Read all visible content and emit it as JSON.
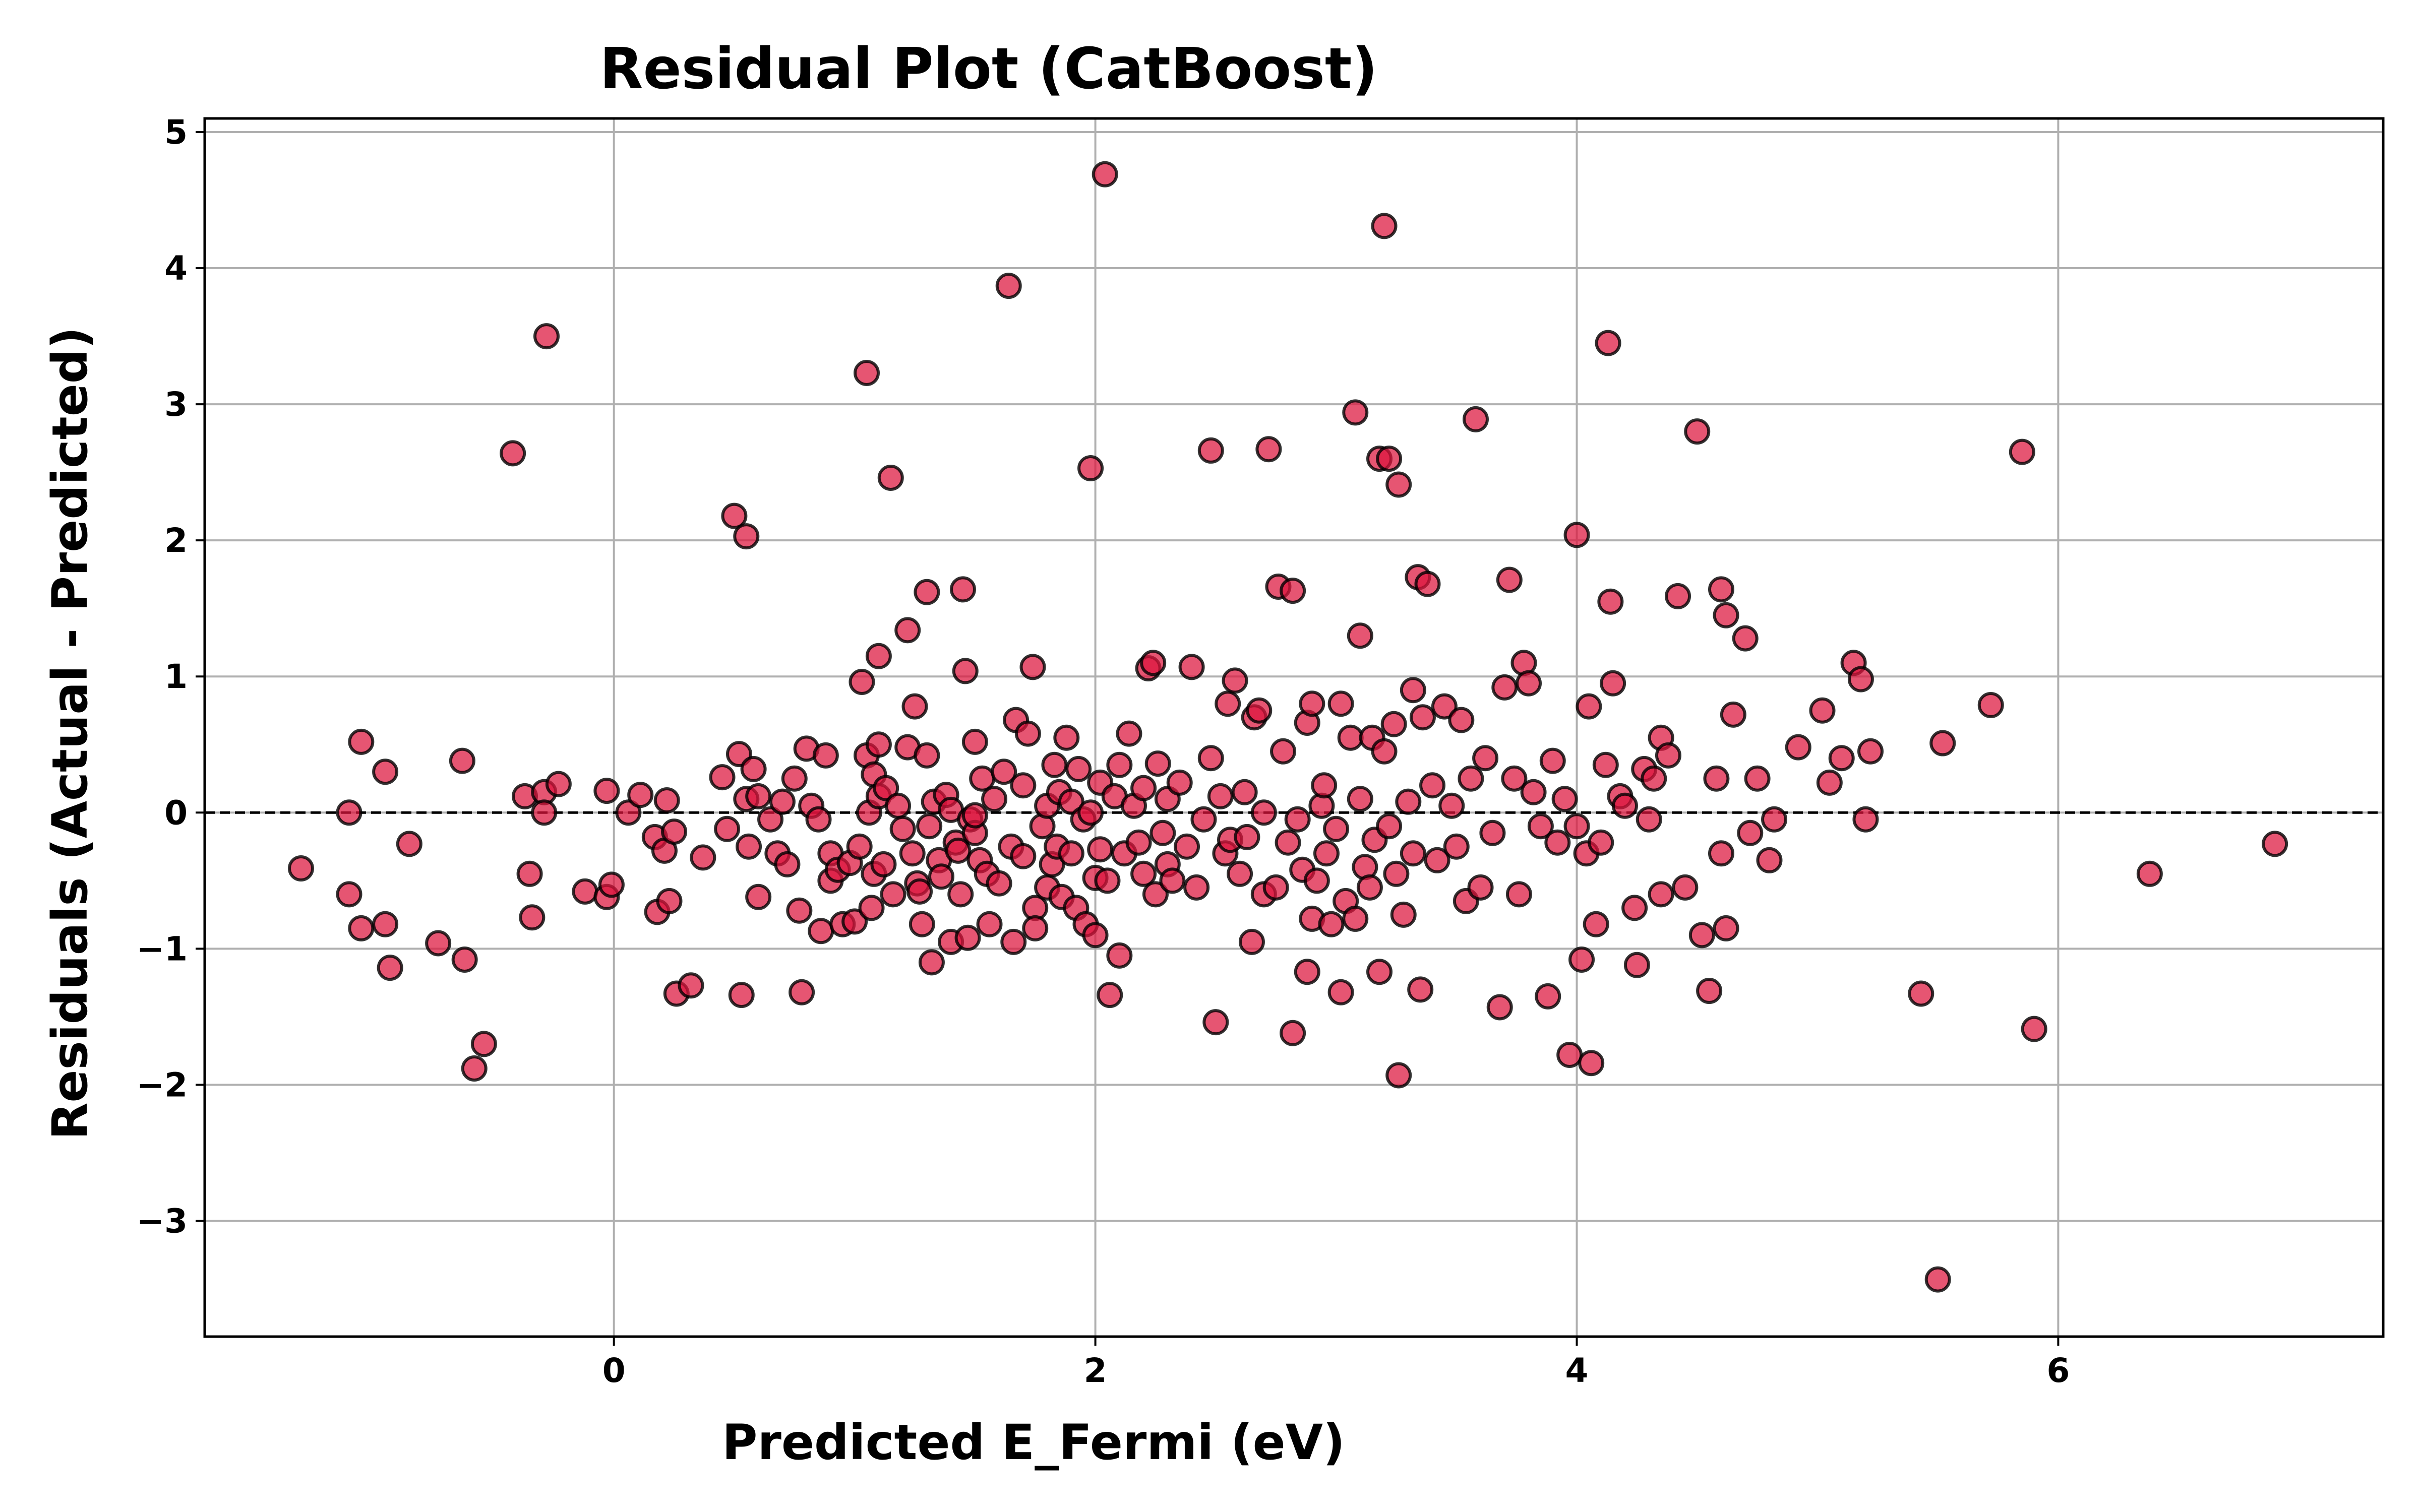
{
  "chart_data": {
    "type": "scatter",
    "title": "Residual Plot (CatBoost)",
    "xlabel": "Predicted E_Fermi (eV)",
    "ylabel": "Residuals (Actual - Predicted)",
    "xlim": [
      -1.7,
      7.35
    ],
    "ylim": [
      -3.85,
      5.1
    ],
    "xticks": [
      0,
      2,
      4,
      6
    ],
    "xtick_labels": [
      "0",
      "2",
      "4",
      "6"
    ],
    "yticks": [
      5,
      4,
      3,
      2,
      1,
      0,
      -1,
      -2,
      -3
    ],
    "ytick_labels": [
      "5",
      "4",
      "3",
      "2",
      "1",
      "0",
      "−1",
      "−2",
      "−3"
    ],
    "grid": true,
    "reference_line": {
      "y": 0,
      "style": "dashed",
      "color": "#000000"
    },
    "marker_fill": "#dc143c",
    "marker_edge": "#000000",
    "points": [
      [
        -1.3,
        -0.41
      ],
      [
        -1.1,
        0.0
      ],
      [
        -1.1,
        -0.6
      ],
      [
        -1.05,
        0.52
      ],
      [
        -1.05,
        -0.85
      ],
      [
        -0.95,
        0.3
      ],
      [
        -0.95,
        -0.82
      ],
      [
        -0.93,
        -1.14
      ],
      [
        -0.85,
        -0.23
      ],
      [
        -0.73,
        -0.96
      ],
      [
        -0.63,
        0.38
      ],
      [
        -0.62,
        -1.08
      ],
      [
        -0.58,
        -1.88
      ],
      [
        -0.54,
        -1.7
      ],
      [
        -0.42,
        2.64
      ],
      [
        -0.37,
        0.12
      ],
      [
        -0.35,
        -0.45
      ],
      [
        -0.34,
        -0.77
      ],
      [
        -0.29,
        0.15
      ],
      [
        -0.29,
        0.0
      ],
      [
        -0.28,
        3.5
      ],
      [
        -0.23,
        0.21
      ],
      [
        -0.12,
        -0.58
      ],
      [
        -0.03,
        0.16
      ],
      [
        -0.03,
        -0.62
      ],
      [
        -0.01,
        -0.53
      ],
      [
        0.06,
        0.0
      ],
      [
        0.11,
        0.13
      ],
      [
        0.17,
        -0.18
      ],
      [
        0.18,
        -0.73
      ],
      [
        0.21,
        -0.28
      ],
      [
        0.22,
        0.09
      ],
      [
        0.23,
        -0.65
      ],
      [
        0.25,
        -0.14
      ],
      [
        0.26,
        -1.33
      ],
      [
        0.32,
        -1.27
      ],
      [
        0.37,
        -0.33
      ],
      [
        0.45,
        0.26
      ],
      [
        0.47,
        -0.12
      ],
      [
        0.5,
        2.18
      ],
      [
        0.52,
        0.43
      ],
      [
        0.53,
        -1.34
      ],
      [
        0.55,
        2.03
      ],
      [
        0.55,
        0.1
      ],
      [
        0.56,
        -0.25
      ],
      [
        0.58,
        0.32
      ],
      [
        0.6,
        -0.62
      ],
      [
        0.6,
        0.12
      ],
      [
        0.65,
        -0.05
      ],
      [
        0.68,
        -0.3
      ],
      [
        0.7,
        0.08
      ],
      [
        0.72,
        -0.38
      ],
      [
        0.75,
        0.25
      ],
      [
        0.77,
        -0.72
      ],
      [
        0.78,
        -1.32
      ],
      [
        0.8,
        0.47
      ],
      [
        0.82,
        0.05
      ],
      [
        0.85,
        -0.05
      ],
      [
        0.86,
        -0.87
      ],
      [
        0.88,
        0.42
      ],
      [
        0.9,
        -0.3
      ],
      [
        0.9,
        -0.5
      ],
      [
        0.93,
        -0.42
      ],
      [
        0.95,
        -0.82
      ],
      [
        0.98,
        -0.37
      ],
      [
        1.0,
        -0.8
      ],
      [
        1.02,
        -0.25
      ],
      [
        1.03,
        0.96
      ],
      [
        1.05,
        3.23
      ],
      [
        1.05,
        0.42
      ],
      [
        1.06,
        0.0
      ],
      [
        1.07,
        -0.7
      ],
      [
        1.08,
        0.28
      ],
      [
        1.08,
        -0.45
      ],
      [
        1.1,
        1.15
      ],
      [
        1.1,
        0.5
      ],
      [
        1.1,
        0.12
      ],
      [
        1.12,
        -0.38
      ],
      [
        1.13,
        0.18
      ],
      [
        1.15,
        2.46
      ],
      [
        1.16,
        -0.6
      ],
      [
        1.18,
        0.05
      ],
      [
        1.2,
        -0.12
      ],
      [
        1.22,
        0.48
      ],
      [
        1.22,
        1.34
      ],
      [
        1.24,
        -0.3
      ],
      [
        1.25,
        0.78
      ],
      [
        1.26,
        -0.52
      ],
      [
        1.27,
        -0.58
      ],
      [
        1.28,
        -0.82
      ],
      [
        1.3,
        1.62
      ],
      [
        1.3,
        0.42
      ],
      [
        1.31,
        -0.1
      ],
      [
        1.32,
        -1.1
      ],
      [
        1.33,
        0.08
      ],
      [
        1.35,
        -0.35
      ],
      [
        1.36,
        -0.47
      ],
      [
        1.38,
        0.13
      ],
      [
        1.4,
        -0.95
      ],
      [
        1.4,
        0.02
      ],
      [
        1.42,
        -0.22
      ],
      [
        1.43,
        -0.28
      ],
      [
        1.44,
        -0.6
      ],
      [
        1.45,
        1.64
      ],
      [
        1.46,
        1.04
      ],
      [
        1.47,
        -0.92
      ],
      [
        1.48,
        -0.05
      ],
      [
        1.5,
        0.52
      ],
      [
        1.5,
        -0.15
      ],
      [
        1.5,
        -0.02
      ],
      [
        1.52,
        -0.35
      ],
      [
        1.53,
        0.25
      ],
      [
        1.55,
        -0.45
      ],
      [
        1.56,
        -0.82
      ],
      [
        1.58,
        0.1
      ],
      [
        1.6,
        -0.52
      ],
      [
        1.62,
        0.3
      ],
      [
        1.64,
        3.87
      ],
      [
        1.65,
        -0.25
      ],
      [
        1.66,
        -0.95
      ],
      [
        1.67,
        0.68
      ],
      [
        1.7,
        0.2
      ],
      [
        1.7,
        -0.32
      ],
      [
        1.72,
        0.58
      ],
      [
        1.74,
        1.07
      ],
      [
        1.75,
        -0.7
      ],
      [
        1.75,
        -0.85
      ],
      [
        1.78,
        -0.1
      ],
      [
        1.8,
        -0.55
      ],
      [
        1.8,
        0.05
      ],
      [
        1.82,
        -0.38
      ],
      [
        1.83,
        0.35
      ],
      [
        1.84,
        -0.25
      ],
      [
        1.85,
        0.15
      ],
      [
        1.86,
        -0.62
      ],
      [
        1.88,
        0.55
      ],
      [
        1.9,
        -0.3
      ],
      [
        1.9,
        0.08
      ],
      [
        1.92,
        -0.7
      ],
      [
        1.93,
        0.32
      ],
      [
        1.95,
        -0.05
      ],
      [
        1.96,
        -0.82
      ],
      [
        1.98,
        2.53
      ],
      [
        1.98,
        0.0
      ],
      [
        2.0,
        -0.48
      ],
      [
        2.0,
        -0.9
      ],
      [
        2.02,
        0.22
      ],
      [
        2.02,
        -0.27
      ],
      [
        2.04,
        4.69
      ],
      [
        2.05,
        -0.5
      ],
      [
        2.06,
        -1.34
      ],
      [
        2.08,
        0.12
      ],
      [
        2.1,
        -1.05
      ],
      [
        2.1,
        0.35
      ],
      [
        2.12,
        -0.3
      ],
      [
        2.14,
        0.58
      ],
      [
        2.16,
        0.05
      ],
      [
        2.18,
        -0.22
      ],
      [
        2.2,
        0.18
      ],
      [
        2.2,
        -0.45
      ],
      [
        2.22,
        1.06
      ],
      [
        2.24,
        1.1
      ],
      [
        2.25,
        -0.6
      ],
      [
        2.26,
        0.36
      ],
      [
        2.28,
        -0.15
      ],
      [
        2.3,
        -0.38
      ],
      [
        2.3,
        0.1
      ],
      [
        2.32,
        -0.5
      ],
      [
        2.35,
        0.22
      ],
      [
        2.38,
        -0.25
      ],
      [
        2.4,
        1.07
      ],
      [
        2.42,
        -0.55
      ],
      [
        2.45,
        -0.05
      ],
      [
        2.48,
        2.66
      ],
      [
        2.48,
        0.4
      ],
      [
        2.5,
        -1.54
      ],
      [
        2.52,
        0.12
      ],
      [
        2.54,
        -0.3
      ],
      [
        2.55,
        0.8
      ],
      [
        2.56,
        -0.2
      ],
      [
        2.58,
        0.97
      ],
      [
        2.6,
        -0.45
      ],
      [
        2.62,
        0.15
      ],
      [
        2.63,
        -0.18
      ],
      [
        2.65,
        -0.95
      ],
      [
        2.66,
        0.7
      ],
      [
        2.68,
        0.75
      ],
      [
        2.7,
        -0.6
      ],
      [
        2.7,
        0.0
      ],
      [
        2.72,
        2.67
      ],
      [
        2.75,
        -0.55
      ],
      [
        2.76,
        1.66
      ],
      [
        2.78,
        0.45
      ],
      [
        2.8,
        -0.22
      ],
      [
        2.82,
        1.63
      ],
      [
        2.82,
        -1.62
      ],
      [
        2.84,
        -0.05
      ],
      [
        2.86,
        -0.42
      ],
      [
        2.88,
        0.66
      ],
      [
        2.88,
        -1.17
      ],
      [
        2.9,
        0.8
      ],
      [
        2.9,
        -0.78
      ],
      [
        2.92,
        -0.5
      ],
      [
        2.94,
        0.05
      ],
      [
        2.95,
        0.2
      ],
      [
        2.96,
        -0.3
      ],
      [
        2.98,
        -0.82
      ],
      [
        3.0,
        -0.12
      ],
      [
        3.02,
        0.8
      ],
      [
        3.02,
        -1.32
      ],
      [
        3.04,
        -0.65
      ],
      [
        3.06,
        0.55
      ],
      [
        3.08,
        2.94
      ],
      [
        3.08,
        -0.78
      ],
      [
        3.1,
        1.3
      ],
      [
        3.1,
        0.1
      ],
      [
        3.12,
        -0.4
      ],
      [
        3.14,
        -0.55
      ],
      [
        3.15,
        0.55
      ],
      [
        3.16,
        -0.2
      ],
      [
        3.18,
        2.6
      ],
      [
        3.18,
        -1.17
      ],
      [
        3.2,
        4.31
      ],
      [
        3.2,
        0.45
      ],
      [
        3.22,
        2.6
      ],
      [
        3.22,
        -0.1
      ],
      [
        3.24,
        0.65
      ],
      [
        3.25,
        -0.45
      ],
      [
        3.26,
        2.41
      ],
      [
        3.26,
        -1.93
      ],
      [
        3.28,
        -0.75
      ],
      [
        3.3,
        0.08
      ],
      [
        3.32,
        0.9
      ],
      [
        3.32,
        -0.3
      ],
      [
        3.34,
        1.73
      ],
      [
        3.35,
        -1.3
      ],
      [
        3.36,
        0.7
      ],
      [
        3.38,
        1.68
      ],
      [
        3.4,
        0.2
      ],
      [
        3.42,
        -0.35
      ],
      [
        3.45,
        0.78
      ],
      [
        3.48,
        0.05
      ],
      [
        3.5,
        -0.25
      ],
      [
        3.52,
        0.68
      ],
      [
        3.54,
        -0.65
      ],
      [
        3.56,
        0.25
      ],
      [
        3.58,
        2.89
      ],
      [
        3.6,
        -0.55
      ],
      [
        3.62,
        0.4
      ],
      [
        3.65,
        -0.15
      ],
      [
        3.68,
        -1.43
      ],
      [
        3.7,
        0.92
      ],
      [
        3.72,
        1.71
      ],
      [
        3.74,
        0.25
      ],
      [
        3.76,
        -0.6
      ],
      [
        3.78,
        1.1
      ],
      [
        3.8,
        0.95
      ],
      [
        3.82,
        0.15
      ],
      [
        3.85,
        -0.1
      ],
      [
        3.88,
        -1.35
      ],
      [
        3.9,
        0.38
      ],
      [
        3.92,
        -0.22
      ],
      [
        3.95,
        0.1
      ],
      [
        3.97,
        -1.78
      ],
      [
        4.0,
        2.04
      ],
      [
        4.0,
        -0.1
      ],
      [
        4.02,
        -1.08
      ],
      [
        4.04,
        -0.3
      ],
      [
        4.05,
        0.78
      ],
      [
        4.06,
        -1.84
      ],
      [
        4.08,
        -0.82
      ],
      [
        4.1,
        -0.22
      ],
      [
        4.12,
        0.35
      ],
      [
        4.13,
        3.45
      ],
      [
        4.14,
        1.55
      ],
      [
        4.15,
        0.95
      ],
      [
        4.18,
        0.12
      ],
      [
        4.2,
        0.05
      ],
      [
        4.24,
        -0.7
      ],
      [
        4.25,
        -1.12
      ],
      [
        4.28,
        0.32
      ],
      [
        4.3,
        -0.05
      ],
      [
        4.32,
        0.25
      ],
      [
        4.35,
        0.55
      ],
      [
        4.35,
        -0.6
      ],
      [
        4.38,
        0.42
      ],
      [
        4.42,
        1.59
      ],
      [
        4.45,
        -0.55
      ],
      [
        4.5,
        2.8
      ],
      [
        4.52,
        -0.9
      ],
      [
        4.55,
        -1.31
      ],
      [
        4.58,
        0.25
      ],
      [
        4.6,
        1.64
      ],
      [
        4.6,
        -0.3
      ],
      [
        4.62,
        1.45
      ],
      [
        4.62,
        -0.85
      ],
      [
        4.65,
        0.72
      ],
      [
        4.7,
        1.28
      ],
      [
        4.72,
        -0.15
      ],
      [
        4.75,
        0.25
      ],
      [
        4.8,
        -0.35
      ],
      [
        4.82,
        -0.05
      ],
      [
        4.92,
        0.48
      ],
      [
        5.02,
        0.75
      ],
      [
        5.05,
        0.22
      ],
      [
        5.1,
        0.4
      ],
      [
        5.15,
        1.1
      ],
      [
        5.18,
        0.98
      ],
      [
        5.2,
        -0.05
      ],
      [
        5.22,
        0.45
      ],
      [
        5.43,
        -1.33
      ],
      [
        5.5,
        -3.43
      ],
      [
        5.52,
        0.51
      ],
      [
        5.72,
        0.79
      ],
      [
        5.85,
        2.65
      ],
      [
        5.9,
        -1.59
      ],
      [
        6.38,
        -0.45
      ],
      [
        6.9,
        -0.23
      ]
    ]
  }
}
